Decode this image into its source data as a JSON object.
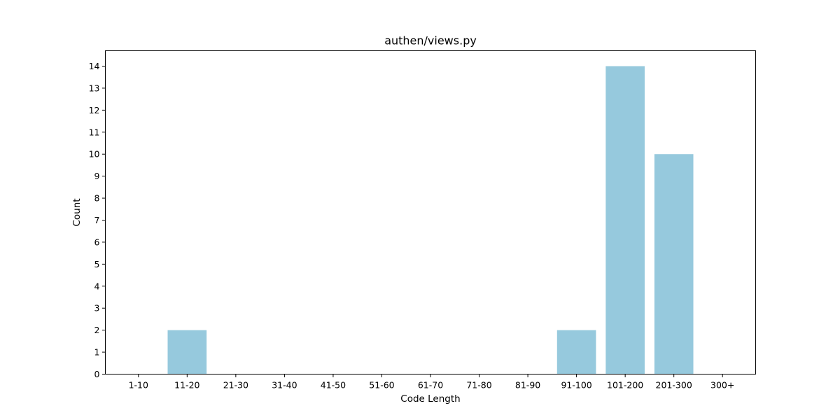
{
  "chart_data": {
    "type": "bar",
    "title": "authen/views.py",
    "xlabel": "Code Length",
    "ylabel": "Count",
    "categories": [
      "1-10",
      "11-20",
      "21-30",
      "31-40",
      "41-50",
      "51-60",
      "61-70",
      "71-80",
      "81-90",
      "91-100",
      "101-200",
      "201-300",
      "300+"
    ],
    "values": [
      0,
      2,
      0,
      0,
      0,
      0,
      0,
      0,
      0,
      2,
      14,
      10,
      0
    ],
    "ylim": [
      0,
      14.7
    ],
    "yticks": [
      0,
      1,
      2,
      3,
      4,
      5,
      6,
      7,
      8,
      9,
      10,
      11,
      12,
      13,
      14
    ],
    "grid": false,
    "bar_color": "#96c9dd"
  }
}
